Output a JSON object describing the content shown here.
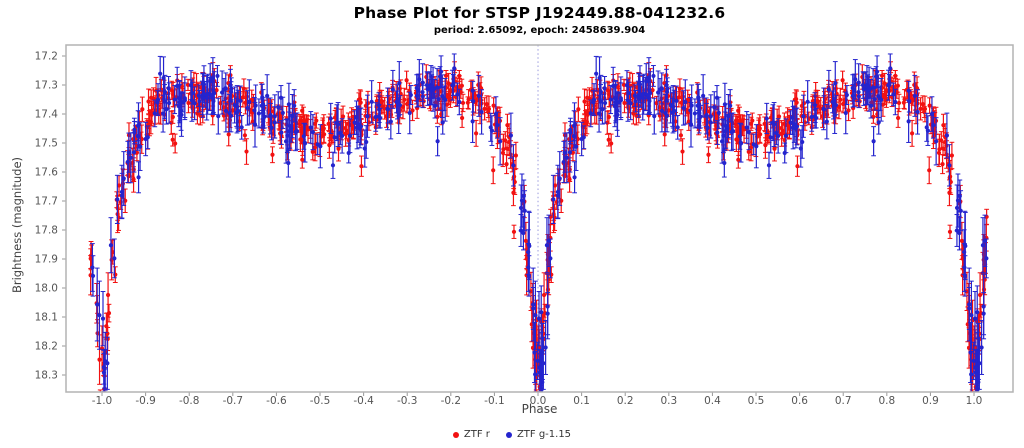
{
  "title": "Phase Plot for STSP J192449.88-041232.6",
  "subtitle": "period: 2.65092, epoch: 2458639.904",
  "chart_data": {
    "type": "scatter",
    "title": "Phase Plot for STSP J192449.88-041232.6",
    "subtitle": "period: 2.65092, epoch: 2458639.904",
    "xlabel": "Phase",
    "ylabel": "Brightness (magnitude)",
    "x_axis": {
      "xlim": [
        -1.0826,
        1.0894
      ],
      "ticks": [
        "-1.0",
        "-0.9",
        "-0.8",
        "-0.7",
        "-0.6",
        "-0.5",
        "-0.4",
        "-0.3",
        "-0.2",
        "-0.1",
        "0.0",
        "0.1",
        "0.2",
        "0.3",
        "0.4",
        "0.5",
        "0.6",
        "0.7",
        "0.8",
        "0.9",
        "1.0"
      ]
    },
    "y_axis": {
      "inverted": true,
      "ylim": [
        17.1621,
        18.3586
      ],
      "ticks": [
        "17.2",
        "17.3",
        "17.4",
        "17.5",
        "17.6",
        "17.7",
        "17.8",
        "17.9",
        "18.0",
        "18.1",
        "18.2",
        "18.3"
      ]
    },
    "grid": false,
    "reference_line": {
      "x": 0.0,
      "style": "dotted",
      "color": "#9a9ade"
    },
    "border_color": "#b3b3b3",
    "tick_color": "#999999",
    "tick_label_color": "#555555",
    "legend": {
      "position": "bottom-center",
      "entries": [
        "ZTF r",
        "ZTF g-1.15"
      ]
    },
    "series": [
      {
        "name": "ZTF r",
        "color": "#f21111",
        "n_obs": 420,
        "noise": 0.034,
        "err_min": 0.018,
        "err_rand": 0.03,
        "seed": 1924498
      },
      {
        "name": "ZTF g-1.15",
        "color": "#2424ce",
        "n_obs": 230,
        "noise": 0.04,
        "err_min": 0.032,
        "err_rand": 0.045,
        "seed": 412326
      }
    ],
    "light_curve_model": {
      "description": "Eclipsing binary, phase-folded and plotted twice (phase, phase-1, phase+1). Out-of-eclipse magnitude = A + B*cos(2*pi*phase) + C*cos(4*pi*phase); primary eclipse (at integer phase) adds depth = min(cap, D0*exp(-d/tau)) where d = |phase distance to nearest integer|.",
      "A": 17.38,
      "B": -0.03,
      "C": 0.05,
      "eclipse_cap": 0.87,
      "eclipse_D0": 1.025,
      "eclipse_tau": 0.0352,
      "eclipse_cutoff": 0.13,
      "eclipse_noise_boost": 1.5,
      "eclipse_err_boost": 0.9,
      "faint_tail_prob": 0.025,
      "faint_tail_min": 0.06,
      "faint_tail_rand": 0.14,
      "mag_out_of_eclipse_range": [
        17.25,
        17.5
      ],
      "mag_eclipse_bottom": 18.25,
      "phase_plot_range": [
        -1.03,
        1.03
      ]
    },
    "outliers": [
      {
        "series": 0,
        "phase": -0.405,
        "mag": 17.58,
        "err": 0.035
      },
      {
        "series": 0,
        "phase": 0.595,
        "mag": 17.58,
        "err": 0.035
      }
    ]
  }
}
